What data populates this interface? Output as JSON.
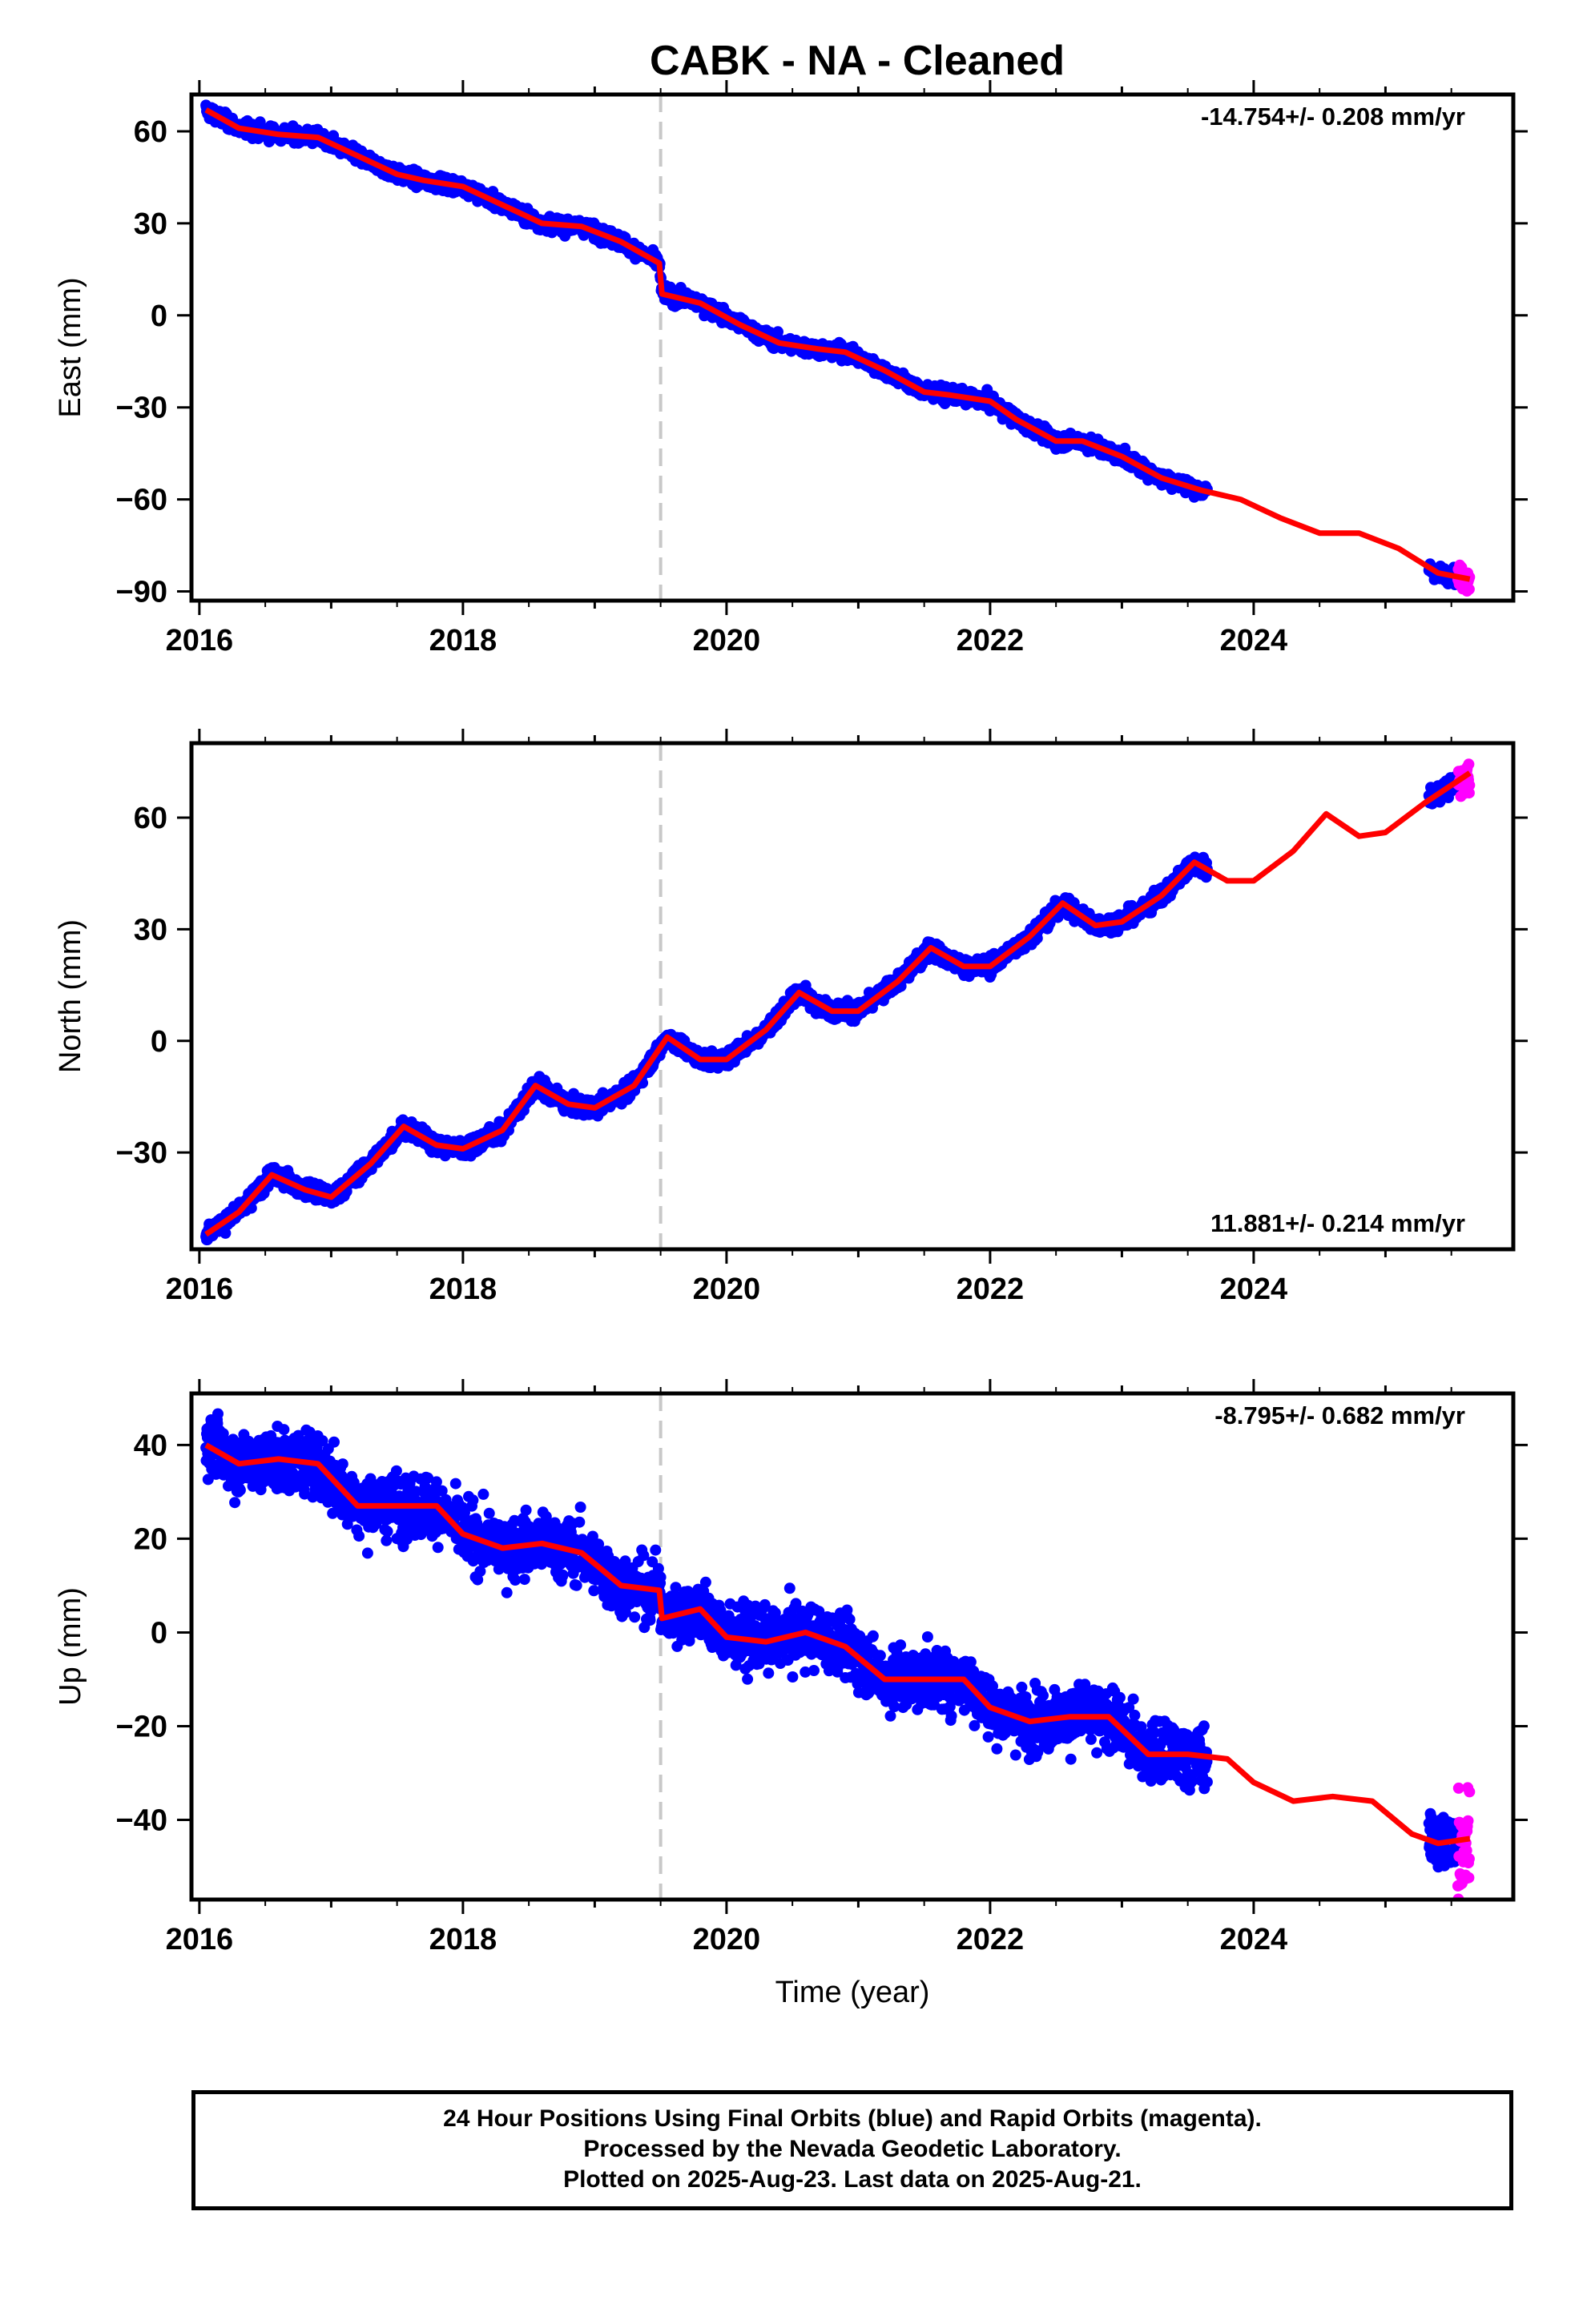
{
  "chart_title": "CABK  - NA - Cleaned",
  "chart_data": [
    {
      "type": "scatter",
      "panel": "east",
      "ylabel": "East (mm)",
      "xlabel": "",
      "xlim": [
        2015.94,
        2025.97
      ],
      "ylim": [
        -93,
        72
      ],
      "x_ticks": [
        2016,
        2018,
        2020,
        2022,
        2024
      ],
      "y_ticks": [
        -90,
        -60,
        -30,
        0,
        30,
        60
      ],
      "rate_label": "-14.754+/- 0.208 mm/yr",
      "rate_position": "top-right",
      "event_line_x": 2019.5,
      "noise_mm": 1.6,
      "series": [
        {
          "name": "Final Orbits",
          "color": "#0000ff",
          "segments": [
            [
              2016.05,
              2023.65
            ],
            [
              2025.33,
              2025.55
            ]
          ]
        },
        {
          "name": "Rapid Orbits",
          "color": "#ff00ff",
          "segments": [
            [
              2025.55,
              2025.64
            ]
          ]
        },
        {
          "name": "Model",
          "color": "#ff0000",
          "x": [
            2016.05,
            2016.3,
            2016.6,
            2016.9,
            2017.2,
            2017.5,
            2017.7,
            2018.0,
            2018.3,
            2018.6,
            2018.9,
            2019.2,
            2019.49,
            2019.51,
            2019.8,
            2020.1,
            2020.4,
            2020.7,
            2020.9,
            2021.2,
            2021.5,
            2021.7,
            2022.0,
            2022.2,
            2022.5,
            2022.7,
            2023.0,
            2023.3,
            2023.6,
            2023.9,
            2024.2,
            2024.5,
            2024.8,
            2025.1,
            2025.4,
            2025.64
          ],
          "y": [
            67,
            61,
            59,
            58,
            52,
            46,
            44,
            42,
            36,
            30,
            29,
            24,
            17,
            7,
            4,
            -3,
            -9,
            -11,
            -12,
            -18,
            -25,
            -26,
            -28,
            -34,
            -41,
            -41,
            -46,
            -53,
            -57,
            -60,
            -66,
            -71,
            -71,
            -76,
            -84,
            -86
          ]
        }
      ]
    },
    {
      "type": "scatter",
      "panel": "north",
      "ylabel": "North (mm)",
      "xlabel": "",
      "xlim": [
        2015.94,
        2025.97
      ],
      "ylim": [
        -56,
        80
      ],
      "x_ticks": [
        2016,
        2018,
        2020,
        2022,
        2024
      ],
      "y_ticks": [
        -30,
        0,
        30,
        60
      ],
      "rate_label": "11.881+/- 0.214 mm/yr",
      "rate_position": "bottom-right",
      "event_line_x": 2019.5,
      "noise_mm": 1.6,
      "series": [
        {
          "name": "Final Orbits",
          "color": "#0000ff",
          "segments": [
            [
              2016.05,
              2023.65
            ],
            [
              2025.33,
              2025.55
            ]
          ]
        },
        {
          "name": "Rapid Orbits",
          "color": "#ff00ff",
          "segments": [
            [
              2025.55,
              2025.64
            ]
          ]
        },
        {
          "name": "Model",
          "color": "#ff0000",
          "x": [
            2016.05,
            2016.3,
            2016.55,
            2016.8,
            2017.0,
            2017.3,
            2017.55,
            2017.8,
            2018.0,
            2018.3,
            2018.55,
            2018.8,
            2019.0,
            2019.3,
            2019.55,
            2019.8,
            2020.0,
            2020.3,
            2020.55,
            2020.8,
            2021.0,
            2021.3,
            2021.55,
            2021.8,
            2022.0,
            2022.3,
            2022.55,
            2022.8,
            2023.0,
            2023.3,
            2023.55,
            2023.8,
            2024.0,
            2024.3,
            2024.55,
            2024.8,
            2025.0,
            2025.3,
            2025.64
          ],
          "y": [
            -52,
            -46,
            -36,
            -40,
            -42,
            -33,
            -23,
            -28,
            -29,
            -24,
            -12,
            -17,
            -18,
            -12,
            1,
            -5,
            -5,
            3,
            13,
            8,
            8,
            16,
            25,
            20,
            20,
            28,
            37,
            31,
            32,
            39,
            48,
            43,
            43,
            51,
            61,
            55,
            56,
            64,
            72
          ]
        }
      ]
    },
    {
      "type": "scatter",
      "panel": "up",
      "ylabel": "Up (mm)",
      "xlabel": "Time (year)",
      "xlim": [
        2015.94,
        2025.97
      ],
      "ylim": [
        -57,
        51
      ],
      "x_ticks": [
        2016,
        2018,
        2020,
        2022,
        2024
      ],
      "y_ticks": [
        -40,
        -20,
        0,
        20,
        40
      ],
      "rate_label": "-8.795+/- 0.682 mm/yr",
      "rate_position": "top-right",
      "event_line_x": 2019.5,
      "noise_mm": 4.5,
      "series": [
        {
          "name": "Final Orbits",
          "color": "#0000ff",
          "segments": [
            [
              2016.05,
              2023.65
            ],
            [
              2025.33,
              2025.55
            ]
          ]
        },
        {
          "name": "Rapid Orbits",
          "color": "#ff00ff",
          "segments": [
            [
              2025.55,
              2025.64
            ]
          ]
        },
        {
          "name": "Model",
          "color": "#ff0000",
          "x": [
            2016.05,
            2016.3,
            2016.6,
            2016.9,
            2017.2,
            2017.5,
            2017.8,
            2018.0,
            2018.3,
            2018.6,
            2018.9,
            2019.2,
            2019.49,
            2019.51,
            2019.8,
            2020.0,
            2020.3,
            2020.6,
            2020.9,
            2021.2,
            2021.5,
            2021.8,
            2022.0,
            2022.3,
            2022.6,
            2022.9,
            2023.2,
            2023.5,
            2023.8,
            2024.0,
            2024.3,
            2024.6,
            2024.9,
            2025.2,
            2025.4,
            2025.64
          ],
          "y": [
            40,
            36,
            37,
            36,
            27,
            27,
            27,
            21,
            18,
            19,
            17,
            10,
            9,
            3,
            5,
            -1,
            -2,
            0,
            -3,
            -10,
            -10,
            -10,
            -16,
            -19,
            -18,
            -18,
            -26,
            -26,
            -27,
            -32,
            -36,
            -35,
            -36,
            -43,
            -45,
            -44
          ]
        }
      ]
    }
  ],
  "footer": {
    "line1": "24 Hour Positions Using Final Orbits (blue) and Rapid Orbits (magenta).",
    "line2": "Processed by the Nevada Geodetic Laboratory.",
    "line3": "Plotted on 2025-Aug-23. Last data on 2025-Aug-21."
  }
}
